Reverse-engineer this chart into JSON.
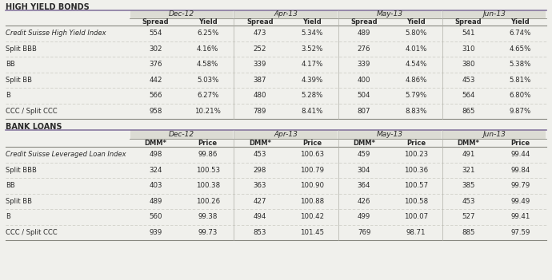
{
  "title1": "HIGH YIELD BONDS",
  "title2": "BANK LOANS",
  "hyb_headers_level1": [
    "Dec-12",
    "Apr-13",
    "May-13",
    "Jun-13"
  ],
  "hyb_headers_level2": [
    "Spread",
    "Yield",
    "Spread",
    "Yield",
    "Spread",
    "Yield",
    "Spread",
    "Yield"
  ],
  "hyb_rows": [
    [
      "Credit Suisse High Yield Index",
      "554",
      "6.25%",
      "473",
      "5.34%",
      "489",
      "5.80%",
      "541",
      "6.74%"
    ],
    [
      "Split BBB",
      "302",
      "4.16%",
      "252",
      "3.52%",
      "276",
      "4.01%",
      "310",
      "4.65%"
    ],
    [
      "BB",
      "376",
      "4.58%",
      "339",
      "4.17%",
      "339",
      "4.54%",
      "380",
      "5.38%"
    ],
    [
      "Split BB",
      "442",
      "5.03%",
      "387",
      "4.39%",
      "400",
      "4.86%",
      "453",
      "5.81%"
    ],
    [
      "B",
      "566",
      "6.27%",
      "480",
      "5.28%",
      "504",
      "5.79%",
      "564",
      "6.80%"
    ],
    [
      "CCC / Split CCC",
      "958",
      "10.21%",
      "789",
      "8.41%",
      "807",
      "8.83%",
      "865",
      "9.87%"
    ]
  ],
  "bl_headers_level1": [
    "Dec-12",
    "Apr-13",
    "May-13",
    "Jun-13"
  ],
  "bl_headers_level2": [
    "DMM*",
    "Price",
    "DMM*",
    "Price",
    "DMM*",
    "Price",
    "DMM*",
    "Price"
  ],
  "bl_rows": [
    [
      "Credit Suisse Leveraged Loan Index",
      "498",
      "99.86",
      "453",
      "100.63",
      "459",
      "100.23",
      "491",
      "99.44"
    ],
    [
      "Split BBB",
      "324",
      "100.53",
      "298",
      "100.79",
      "304",
      "100.36",
      "321",
      "99.84"
    ],
    [
      "BB",
      "403",
      "100.38",
      "363",
      "100.90",
      "364",
      "100.57",
      "385",
      "99.79"
    ],
    [
      "Split BB",
      "489",
      "100.26",
      "427",
      "100.88",
      "426",
      "100.58",
      "453",
      "99.49"
    ],
    [
      "B",
      "560",
      "99.38",
      "494",
      "100.42",
      "499",
      "100.07",
      "527",
      "99.41"
    ],
    [
      "CCC / Split CCC",
      "939",
      "99.73",
      "853",
      "101.45",
      "769",
      "98.71",
      "885",
      "97.59"
    ]
  ],
  "bg_color": "#f0f0ec",
  "header_bg": "#dcdcd4",
  "title_underline_color": "#8878a0",
  "text_color": "#2a2a2a",
  "header_text_color": "#2a2a2a",
  "separator_color": "#b0b0a8",
  "row_sep_color": "#c8c8c0",
  "strong_line_color": "#888880"
}
